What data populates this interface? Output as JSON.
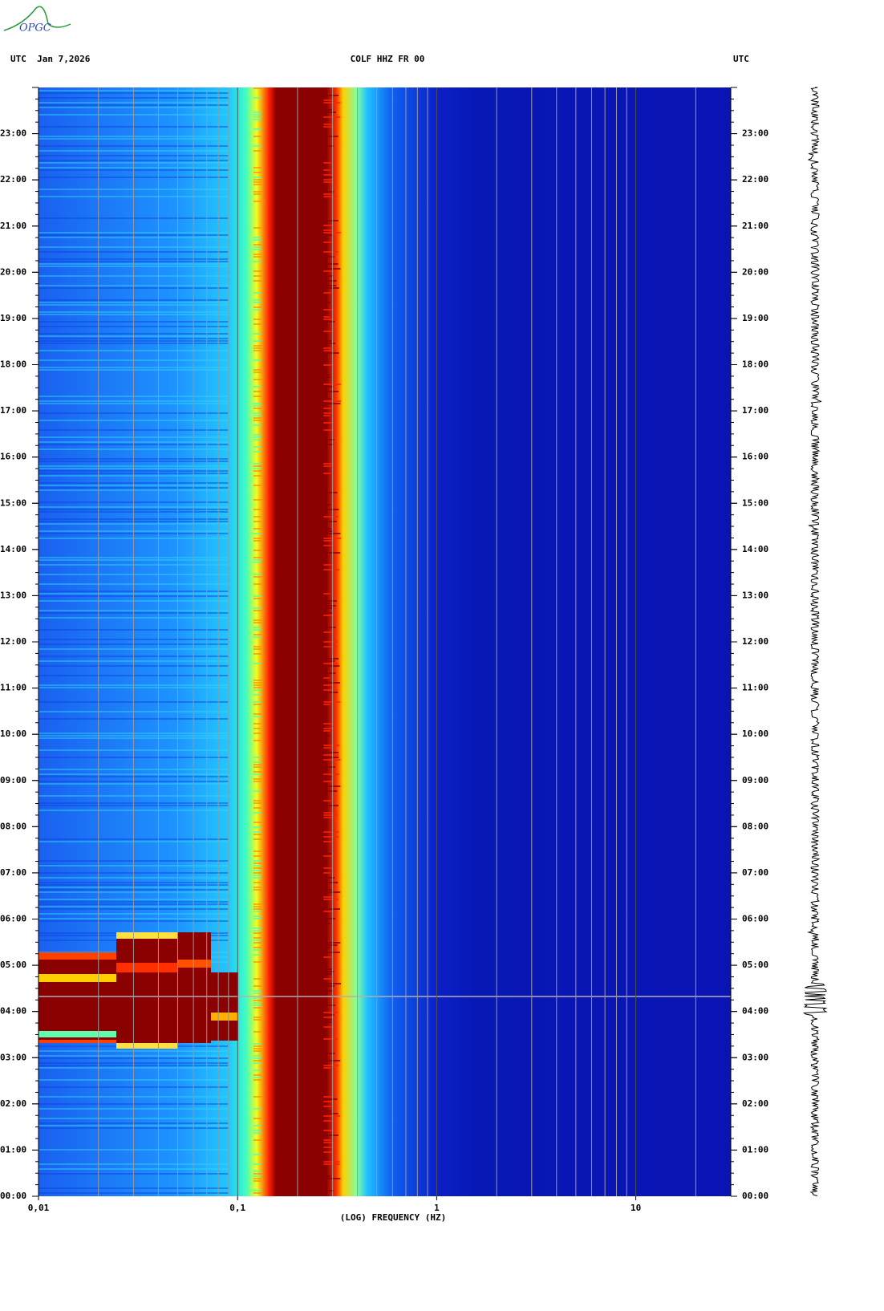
{
  "logo": "OPGC",
  "chart_data": {
    "type": "heatmap",
    "title": "COLF HHZ FR 00",
    "date_label": "UTC  Jan 7,2026",
    "right_label": "UTC",
    "xlabel": "(LOG) FREQUENCY (HZ)",
    "xscale": "log",
    "xlim": [
      0.01,
      30
    ],
    "xticks": [
      {
        "value": 0.01,
        "label": "0,01"
      },
      {
        "value": 0.1,
        "label": "0,1"
      },
      1,
      10
    ],
    "ylim": [
      0,
      24
    ],
    "yticks": [
      {
        "value": 0,
        "label": "00:00"
      },
      {
        "value": 1,
        "label": "01:00"
      },
      {
        "value": 2,
        "label": "02:00"
      },
      {
        "value": 3,
        "label": "03:00"
      },
      {
        "value": 4,
        "label": "04:00"
      },
      {
        "value": 5,
        "label": "05:00"
      },
      {
        "value": 6,
        "label": "06:00"
      },
      {
        "value": 7,
        "label": "07:00"
      },
      {
        "value": 8,
        "label": "08:00"
      },
      {
        "value": 9,
        "label": "09:00"
      },
      {
        "value": 10,
        "label": "10:00"
      },
      {
        "value": 11,
        "label": "11:00"
      },
      {
        "value": 12,
        "label": "12:00"
      },
      {
        "value": 13,
        "label": "13:00"
      },
      {
        "value": 14,
        "label": "14:00"
      },
      {
        "value": 15,
        "label": "15:00"
      },
      {
        "value": 16,
        "label": "16:00"
      },
      {
        "value": 17,
        "label": "17:00"
      },
      {
        "value": 18,
        "label": "18:00"
      },
      {
        "value": 19,
        "label": "19:00"
      },
      {
        "value": 20,
        "label": "20:00"
      },
      {
        "value": 21,
        "label": "21:00"
      },
      {
        "value": 22,
        "label": "22:00"
      },
      {
        "value": 23,
        "label": "23:00"
      }
    ],
    "grid": true
  }
}
